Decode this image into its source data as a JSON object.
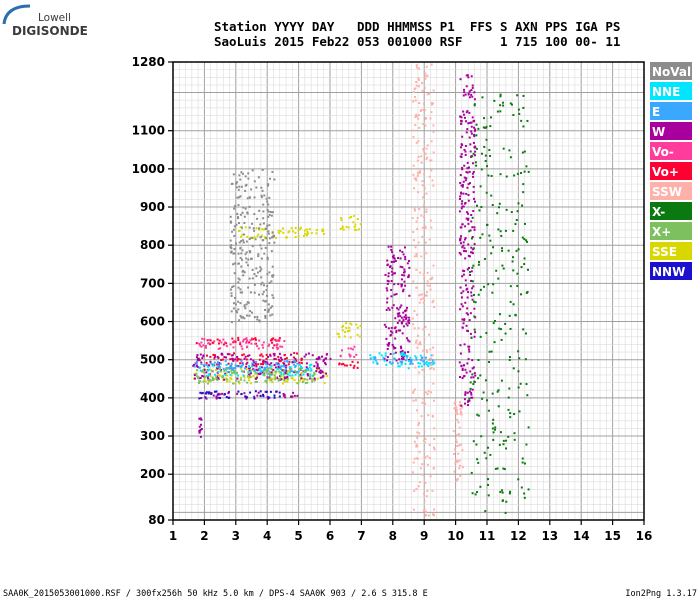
{
  "logo": {
    "line1": "Lowell",
    "line2": "DIGISONDE"
  },
  "header": {
    "line1": "Station YYYY DAY   DDD HHMMSS P1  FFS S AXN PPS IGA PS",
    "line2": "SaoLuis 2015 Feb22 053 001000 RSF     1 715 100 00- 11"
  },
  "footer": {
    "left": "SAA0K_2015053001000.RSF / 300fx256h 50 kHz 5.0 km / DPS-4 SAA0K 903 / 2.6 S 315.8 E",
    "right": "Ion2Png 1.3.17"
  },
  "legend": [
    {
      "label": "NoVal",
      "bg": "#8c8c8c",
      "fg": "#ffffff"
    },
    {
      "label": "NNE",
      "bg": "#00e6ff",
      "fg": "#ffffff"
    },
    {
      "label": "E",
      "bg": "#3aa8ff",
      "fg": "#ffffff"
    },
    {
      "label": "W",
      "bg": "#a8009c",
      "fg": "#ffffff"
    },
    {
      "label": "Vo-",
      "bg": "#ff3c9c",
      "fg": "#ffffff"
    },
    {
      "label": "Vo+",
      "bg": "#ff0033",
      "fg": "#ffffff"
    },
    {
      "label": "SSW",
      "bg": "#ffb0a8",
      "fg": "#ffffff"
    },
    {
      "label": "X-",
      "bg": "#0a7a10",
      "fg": "#ffffff"
    },
    {
      "label": "X+",
      "bg": "#7cc060",
      "fg": "#ffffff"
    },
    {
      "label": "SSE",
      "bg": "#d8d800",
      "fg": "#ffffff"
    },
    {
      "label": "NNW",
      "bg": "#1c10d0",
      "fg": "#ffffff"
    }
  ],
  "chart_data": {
    "type": "scatter",
    "xlim": [
      1,
      16
    ],
    "ylim": [
      80,
      1280
    ],
    "xticks": [
      1,
      2,
      3,
      4,
      5,
      6,
      7,
      8,
      9,
      10,
      11,
      12,
      13,
      14,
      15,
      16
    ],
    "yticks": [
      80,
      200,
      300,
      400,
      500,
      600,
      700,
      800,
      900,
      1000,
      1100,
      1280
    ],
    "grid": true,
    "series": [
      {
        "name": "SSE",
        "color": "#d8d800",
        "clusters": [
          {
            "x": [
              1.6,
              5.9
            ],
            "y": [
              440,
              480
            ]
          },
          {
            "x": [
              3.0,
              5.8
            ],
            "y": [
              820,
              850
            ]
          },
          {
            "x": [
              6.3,
              7.0
            ],
            "y": [
              840,
              880
            ]
          },
          {
            "x": [
              6.2,
              7.0
            ],
            "y": [
              560,
              600
            ]
          }
        ]
      },
      {
        "name": "Vo+",
        "color": "#ff0033",
        "clusters": [
          {
            "x": [
              1.8,
              5.2
            ],
            "y": [
              490,
              520
            ]
          },
          {
            "x": [
              1.7,
              4.4
            ],
            "y": [
              540,
              560
            ]
          },
          {
            "x": [
              6.2,
              6.9
            ],
            "y": [
              480,
              500
            ]
          }
        ]
      },
      {
        "name": "Vo-",
        "color": "#ff3c9c",
        "clusters": [
          {
            "x": [
              1.8,
              4.6
            ],
            "y": [
              530,
              560
            ]
          },
          {
            "x": [
              6.3,
              6.9
            ],
            "y": [
              510,
              540
            ]
          }
        ]
      },
      {
        "name": "W",
        "color": "#a8009c",
        "clusters": [
          {
            "x": [
              1.8,
              5.0
            ],
            "y": [
              400,
              420
            ]
          },
          {
            "x": [
              1.6,
              6.0
            ],
            "y": [
              450,
              520
            ]
          },
          {
            "x": [
              7.7,
              8.5
            ],
            "y": [
              500,
              800
            ]
          },
          {
            "x": [
              10.1,
              10.6
            ],
            "y": [
              380,
              1250
            ]
          },
          {
            "x": [
              1.8,
              1.9
            ],
            "y": [
              300,
              350
            ]
          }
        ]
      },
      {
        "name": "NNW",
        "color": "#1c10d0",
        "clusters": [
          {
            "x": [
              1.8,
              4.5
            ],
            "y": [
              400,
              420
            ]
          }
        ]
      },
      {
        "name": "NNE",
        "color": "#00e6ff",
        "clusters": [
          {
            "x": [
              1.8,
              5.5
            ],
            "y": [
              460,
              490
            ]
          },
          {
            "x": [
              7.2,
              9.3
            ],
            "y": [
              480,
              520
            ]
          }
        ]
      },
      {
        "name": "E",
        "color": "#3aa8ff",
        "clusters": [
          {
            "x": [
              7.2,
              9.3
            ],
            "y": [
              490,
              510
            ]
          },
          {
            "x": [
              1.6,
              5.0
            ],
            "y": [
              470,
              500
            ]
          }
        ]
      },
      {
        "name": "SSW",
        "color": "#ffb0a8",
        "clusters": [
          {
            "x": [
              8.6,
              9.3
            ],
            "y": [
              90,
              1280
            ]
          },
          {
            "x": [
              9.9,
              10.2
            ],
            "y": [
              180,
              400
            ]
          }
        ]
      },
      {
        "name": "X-",
        "color": "#0a7a10",
        "clusters": [
          {
            "x": [
              10.4,
              12.3
            ],
            "y": [
              100,
              1200
            ]
          }
        ]
      },
      {
        "name": "X+",
        "color": "#7cc060",
        "clusters": [
          {
            "x": [
              1.7,
              5.5
            ],
            "y": [
              440,
              480
            ]
          }
        ]
      },
      {
        "name": "NoVal",
        "color": "#8c8c8c",
        "clusters": [
          {
            "x": [
              2.8,
              4.2
            ],
            "y": [
              600,
              1000
            ]
          }
        ]
      }
    ]
  }
}
